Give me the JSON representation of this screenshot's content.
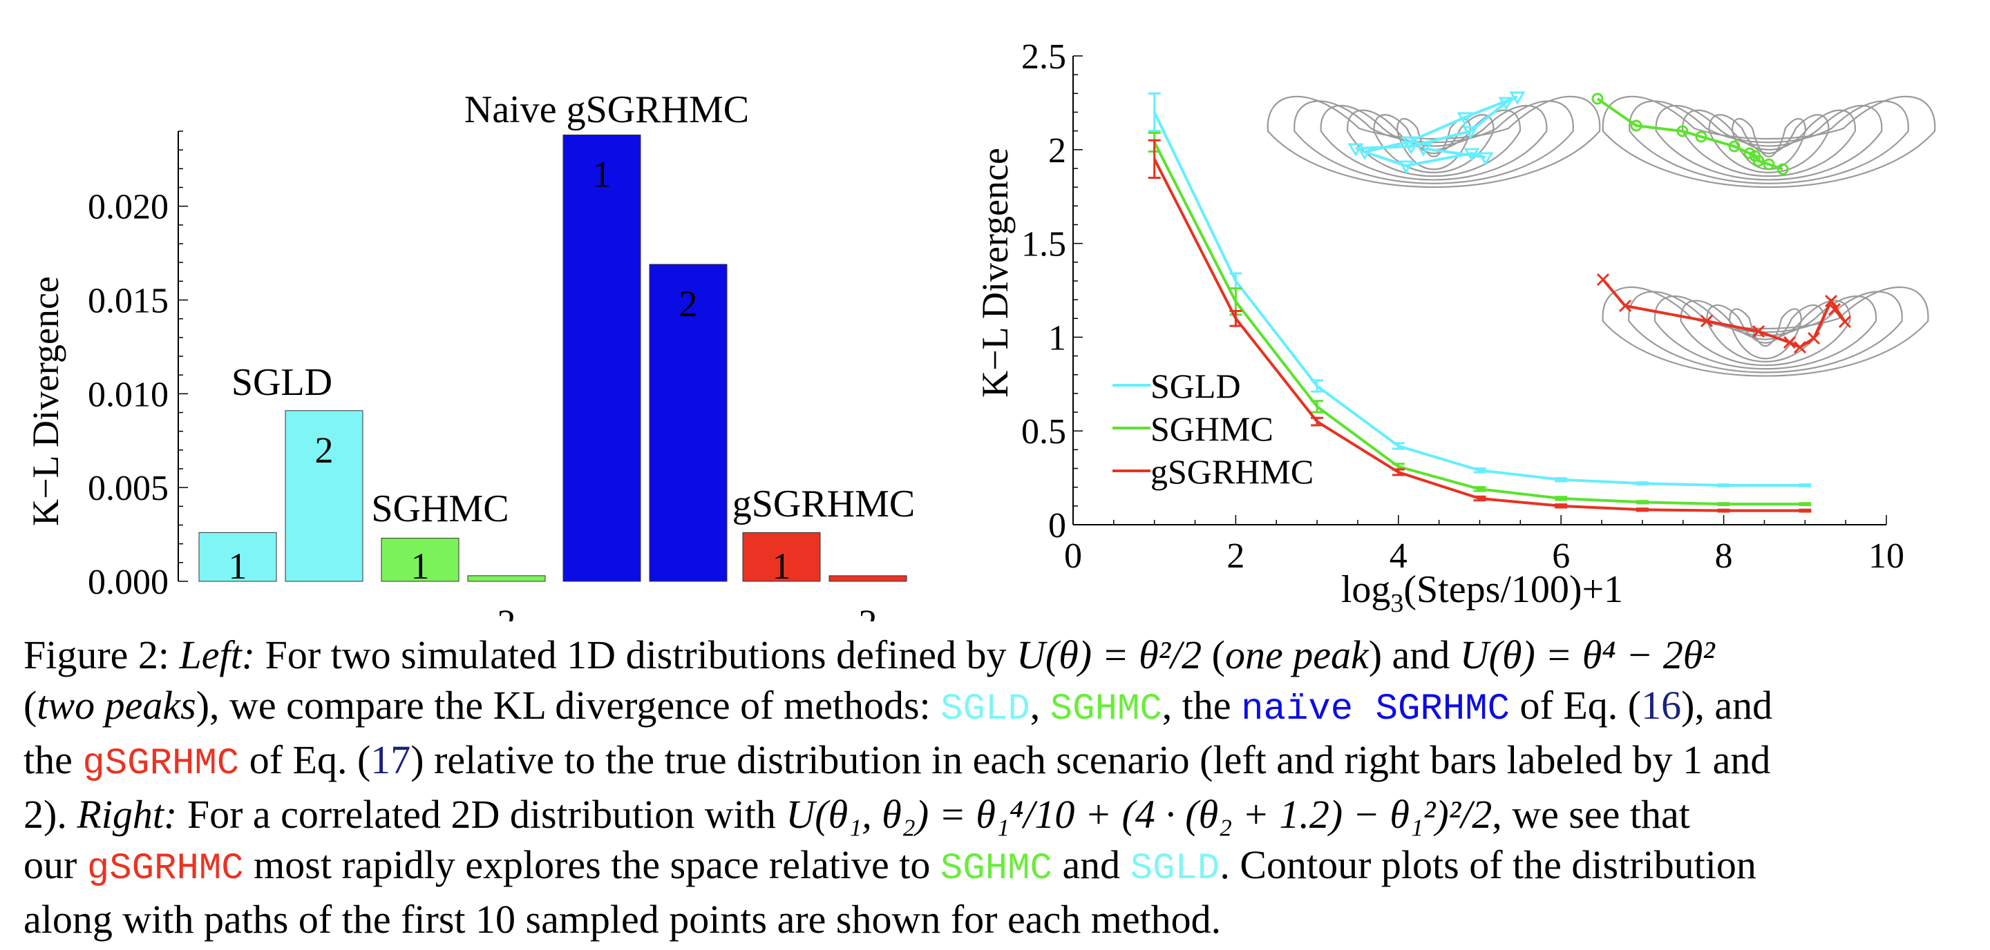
{
  "colors": {
    "sgld": "#7ff5f5",
    "sghmc": "#7cf25a",
    "naive": "#0b0be6",
    "gsgrhmc": "#ea3323",
    "ref": "#1a237e",
    "contour": "#9a9a9a",
    "sgld_line": "#66eeff",
    "sghmc_line": "#5ce22e",
    "gsg_line": "#e63322"
  },
  "chart_data": [
    {
      "type": "bar",
      "ylabel": "K−L Divergence",
      "ylim": [
        0,
        0.024
      ],
      "yticks": [
        0.0,
        0.005,
        0.01,
        0.015,
        0.02
      ],
      "ytick_labels": [
        "0.000",
        "0.005",
        "0.010",
        "0.015",
        "0.020"
      ],
      "bar_labels": [
        "1",
        "2"
      ],
      "groups": [
        {
          "name": "SGLD",
          "values": [
            0.0026,
            0.0091
          ],
          "color": "#7ff5f5"
        },
        {
          "name": "SGHMC",
          "values": [
            0.0023,
            0.0003
          ],
          "color": "#7cf25a"
        },
        {
          "name": "Naive gSGRHMC",
          "values": [
            0.0238,
            0.0169
          ],
          "color": "#0b0be6"
        },
        {
          "name": "gSGRHMC",
          "values": [
            0.0026,
            0.0003
          ],
          "color": "#ea3323"
        }
      ]
    },
    {
      "type": "line",
      "ylabel": "K−L Divergence",
      "xlabel_base": "log",
      "xlabel_sub": "3",
      "xlabel_rest": "(Steps/100)+1",
      "xlim": [
        0,
        10
      ],
      "ylim": [
        0,
        2.5
      ],
      "xticks": [
        0,
        2,
        4,
        6,
        8,
        10
      ],
      "xtick_labels": [
        "0",
        "2",
        "4",
        "6",
        "8",
        "10"
      ],
      "yticks": [
        0,
        0.5,
        1,
        1.5,
        2,
        2.5
      ],
      "ytick_labels": [
        "0",
        "0.5",
        "1",
        "1.5",
        "2",
        "2.5"
      ],
      "legend_position": "bottom-left",
      "x": [
        1,
        2,
        3,
        4,
        5,
        6,
        7,
        8,
        9
      ],
      "series": [
        {
          "name": "SGLD",
          "color": "#66eeff",
          "values": [
            2.2,
            1.3,
            0.74,
            0.42,
            0.29,
            0.24,
            0.22,
            0.21,
            0.21
          ],
          "errors": [
            0.1,
            0.04,
            0.03,
            0.015,
            0.01,
            0.008,
            0.006,
            0.005,
            0.005
          ]
        },
        {
          "name": "SGHMC",
          "color": "#5ce22e",
          "values": [
            2.04,
            1.19,
            0.63,
            0.31,
            0.19,
            0.14,
            0.12,
            0.11,
            0.11
          ],
          "errors": [
            0.05,
            0.07,
            0.03,
            0.015,
            0.01,
            0.008,
            0.006,
            0.005,
            0.005
          ]
        },
        {
          "name": "gSGRHMC",
          "color": "#e63322",
          "values": [
            1.95,
            1.1,
            0.55,
            0.28,
            0.14,
            0.1,
            0.08,
            0.075,
            0.075
          ],
          "errors": [
            0.1,
            0.04,
            0.02,
            0.015,
            0.01,
            0.008,
            0.006,
            0.005,
            0.005
          ]
        }
      ]
    }
  ],
  "caption": {
    "fig_label": "Figure 2:",
    "left_label": "Left:",
    "t1a": "For two simulated 1D distributions defined by",
    "eq1": "U(θ) = θ²/2",
    "t1b": "(",
    "one_peak": "one peak",
    "t1c": ") and",
    "eq2": "U(θ) = θ⁴ − 2θ²",
    "t2a": "(",
    "two_peaks": "two peaks",
    "t2b": "), we compare the KL divergence of methods:",
    "m_sgld": "SGLD",
    "comma1": ",",
    "m_sghmc": "SGHMC",
    "t2c": ", the",
    "m_naive": "naïve SGRHMC",
    "t2d": "of Eq. (",
    "ref16": "16",
    "t2e": "), and",
    "t3a": "the",
    "m_gsg": "gSGRHMC",
    "t3b": "of Eq. (",
    "ref17": "17",
    "t3c": ") relative to the true distribution in each scenario (left and right bars labeled by 1 and",
    "t4a": "2).",
    "right_label": "Right:",
    "t4b": "For a correlated 2D distribution with",
    "eq3": "U(θ₁, θ₂) = θ₁⁴/10 + (4 · (θ₂ + 1.2) − θ₁²)²/2",
    "t4c": ", we see that",
    "t5a": "our",
    "m_gsg2": "gSGRHMC",
    "t5b": "most rapidly explores the space relative to",
    "m_sghmc2": "SGHMC",
    "t5c": "and",
    "m_sgld2": "SGLD",
    "t5d": ". Contour plots of the distribution",
    "t6": "along with paths of the first 10 sampled points are shown for each method."
  }
}
